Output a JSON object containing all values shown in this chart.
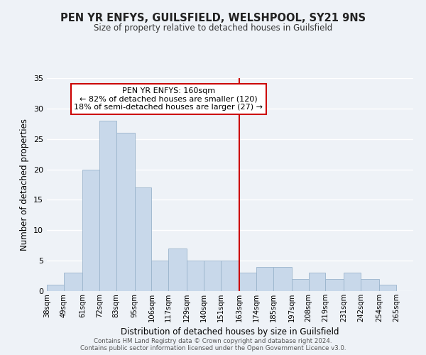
{
  "title": "PEN YR ENFYS, GUILSFIELD, WELSHPOOL, SY21 9NS",
  "subtitle": "Size of property relative to detached houses in Guilsfield",
  "xlabel": "Distribution of detached houses by size in Guilsfield",
  "ylabel": "Number of detached properties",
  "bin_labels": [
    "38sqm",
    "49sqm",
    "61sqm",
    "72sqm",
    "83sqm",
    "95sqm",
    "106sqm",
    "117sqm",
    "129sqm",
    "140sqm",
    "151sqm",
    "163sqm",
    "174sqm",
    "185sqm",
    "197sqm",
    "208sqm",
    "219sqm",
    "231sqm",
    "242sqm",
    "254sqm",
    "265sqm"
  ],
  "bin_edges": [
    38,
    49,
    61,
    72,
    83,
    95,
    106,
    117,
    129,
    140,
    151,
    163,
    174,
    185,
    197,
    208,
    219,
    231,
    242,
    254,
    265
  ],
  "bar_heights": [
    1,
    3,
    20,
    28,
    26,
    17,
    5,
    7,
    5,
    5,
    5,
    3,
    4,
    4,
    2,
    3,
    2,
    3,
    2,
    1,
    0
  ],
  "bar_color": "#c8d8ea",
  "bar_edgecolor": "#9ab4cc",
  "vline_x": 163,
  "vline_color": "#cc0000",
  "annotation_title": "PEN YR ENFYS: 160sqm",
  "annotation_line1": "← 82% of detached houses are smaller (120)",
  "annotation_line2": "18% of semi-detached houses are larger (27) →",
  "annotation_box_edgecolor": "#cc0000",
  "annotation_box_facecolor": "#ffffff",
  "ylim": [
    0,
    35
  ],
  "yticks": [
    0,
    5,
    10,
    15,
    20,
    25,
    30,
    35
  ],
  "footer1": "Contains HM Land Registry data © Crown copyright and database right 2024.",
  "footer2": "Contains public sector information licensed under the Open Government Licence v3.0.",
  "background_color": "#eef2f7",
  "plot_background_color": "#eef2f7"
}
